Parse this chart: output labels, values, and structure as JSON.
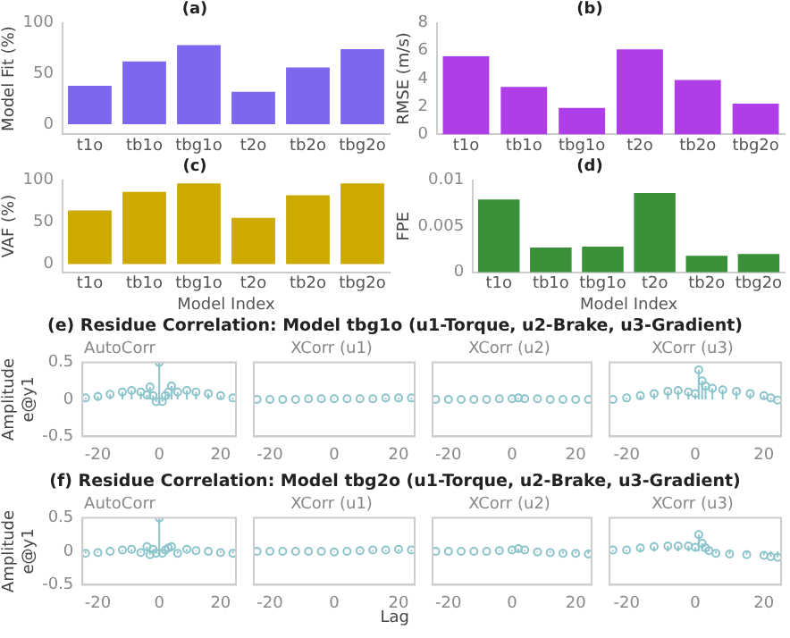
{
  "chart_data": [
    {
      "type": "bar",
      "title": "(a)",
      "ylabel": "Model Fit (%)",
      "categories": [
        "t1o",
        "tb1o",
        "tbg1o",
        "t2o",
        "tb2o",
        "tbg2o"
      ],
      "values": [
        38,
        62,
        78,
        32,
        56,
        74
      ],
      "color": "#7b68ee",
      "ylim": [
        -10,
        100
      ],
      "yticks": [
        0,
        50,
        100
      ]
    },
    {
      "type": "bar",
      "title": "(b)",
      "ylabel": "RMSE (m/s)",
      "categories": [
        "t1o",
        "tb1o",
        "tbg1o",
        "t2o",
        "tb2o",
        "tbg2o"
      ],
      "values": [
        5.6,
        3.4,
        1.9,
        6.1,
        3.9,
        2.2
      ],
      "color": "#b03ee8",
      "ylim": [
        0,
        8
      ],
      "yticks": [
        0,
        2,
        4,
        6,
        8
      ]
    },
    {
      "type": "bar",
      "title": "(c)",
      "ylabel": "VAF (%)",
      "xlabel": "Model Index",
      "categories": [
        "t1o",
        "tb1o",
        "tbg1o",
        "t2o",
        "tb2o",
        "tbg2o"
      ],
      "values": [
        64,
        86,
        96,
        55,
        82,
        96
      ],
      "color": "#ccaa00",
      "ylim": [
        -10,
        100
      ],
      "yticks": [
        0,
        50,
        100
      ]
    },
    {
      "type": "bar",
      "title": "(d)",
      "ylabel": "FPE",
      "xlabel": "Model Index",
      "categories": [
        "t1o",
        "tb1o",
        "tbg1o",
        "t2o",
        "tb2o",
        "tbg2o"
      ],
      "values": [
        0.0079,
        0.0027,
        0.0028,
        0.0086,
        0.0018,
        0.002
      ],
      "color": "#3a913a",
      "ylim": [
        0,
        0.01
      ],
      "yticks": [
        0,
        0.005,
        0.01
      ]
    },
    {
      "type": "lollipop",
      "title": "(e) Residue Correlation: Model tbg1o (u1-Torque, u2-Brake, u3-Gradient)",
      "subtitle": "AutoCorr",
      "ylabel": "Amplitude\ne@y1",
      "marker": "circle",
      "color": "#8cc4cc",
      "xlim": [
        -25,
        25
      ],
      "xticks": [
        -20,
        0,
        20
      ],
      "ylim": [
        -0.5,
        0.5
      ],
      "yticks": [
        -0.5,
        0,
        0.5
      ],
      "x": [
        -24,
        -20,
        -16,
        -12,
        -9,
        -6,
        -4,
        -3,
        -2,
        -1,
        0,
        1,
        2,
        3,
        4,
        6,
        9,
        12,
        16,
        20,
        24
      ],
      "values": [
        0.02,
        0.04,
        0.07,
        0.1,
        0.12,
        0.1,
        0.06,
        0.17,
        0.05,
        -0.03,
        0.5,
        -0.03,
        0.05,
        0.1,
        0.18,
        0.1,
        0.12,
        0.1,
        0.08,
        0.05,
        0.02
      ]
    },
    {
      "type": "lollipop",
      "subtitle": "XCorr (u1)",
      "marker": "circle",
      "color": "#8cc4cc",
      "tick_labels": "x",
      "xlim": [
        -25,
        25
      ],
      "xticks": [
        -20,
        0,
        20
      ],
      "ylim": [
        -0.5,
        0.5
      ],
      "yticks": [
        -0.5,
        0,
        0.5
      ],
      "x": [
        -24,
        -20,
        -16,
        -12,
        -8,
        -4,
        0,
        4,
        8,
        12,
        16,
        20,
        24
      ],
      "values": [
        0,
        0,
        0,
        0,
        0.01,
        0.01,
        0.01,
        0.01,
        0.01,
        0.01,
        0.02,
        0.02,
        0.02
      ]
    },
    {
      "type": "lollipop",
      "subtitle": "XCorr (u2)",
      "marker": "circle",
      "color": "#8cc4cc",
      "tick_labels": "x",
      "xlim": [
        -25,
        25
      ],
      "xticks": [
        -20,
        0,
        20
      ],
      "ylim": [
        -0.5,
        0.5
      ],
      "yticks": [
        -0.5,
        0,
        0.5
      ],
      "x": [
        -24,
        -20,
        -16,
        -12,
        -8,
        -4,
        0,
        2,
        4,
        8,
        12,
        16,
        20,
        24
      ],
      "values": [
        0,
        0,
        0,
        0,
        0,
        0.01,
        0.01,
        0.02,
        0.01,
        0.01,
        0,
        0,
        0,
        0
      ]
    },
    {
      "type": "lollipop",
      "subtitle": "XCorr (u3)",
      "marker": "circle",
      "color": "#8cc4cc",
      "tick_labels": "x",
      "xlim": [
        -25,
        25
      ],
      "xticks": [
        -20,
        0,
        20
      ],
      "ylim": [
        -0.5,
        0.5
      ],
      "yticks": [
        -0.5,
        0,
        0.5
      ],
      "x": [
        -24,
        -20,
        -16,
        -12,
        -8,
        -5,
        -2,
        0,
        1,
        2,
        3,
        5,
        8,
        12,
        16,
        20,
        22,
        24
      ],
      "values": [
        0,
        0.02,
        0.05,
        0.08,
        0.11,
        0.12,
        0.1,
        0.08,
        0.4,
        0.25,
        0.18,
        0.15,
        0.13,
        0.11,
        0.08,
        0.05,
        0.02,
        -0.01
      ]
    },
    {
      "type": "lollipop",
      "title": "(f) Residue Correlation: Model tbg2o (u1-Torque, u2-Brake, u3-Gradient)",
      "subtitle": "AutoCorr",
      "ylabel": "Amplitude\ne@y1",
      "marker": "circle",
      "color": "#8cc4cc",
      "xlim": [
        -25,
        25
      ],
      "xticks": [
        -20,
        0,
        20
      ],
      "ylim": [
        -0.5,
        0.5
      ],
      "yticks": [
        -0.5,
        0,
        0.5
      ],
      "x": [
        -24,
        -20,
        -16,
        -12,
        -9,
        -6,
        -4,
        -3,
        -2,
        -1,
        0,
        1,
        2,
        3,
        4,
        6,
        9,
        12,
        16,
        20,
        24
      ],
      "values": [
        -0.03,
        -0.02,
        0,
        0.02,
        0.03,
        -0.02,
        0.07,
        -0.05,
        0.03,
        -0.03,
        0.5,
        -0.03,
        0.02,
        0.05,
        0.07,
        -0.03,
        0.03,
        0.01,
        0,
        -0.02,
        -0.03
      ]
    },
    {
      "type": "lollipop",
      "subtitle": "XCorr (u1)",
      "xlabel": "Lag",
      "marker": "circle",
      "color": "#8cc4cc",
      "tick_labels": "x",
      "xlim": [
        -25,
        25
      ],
      "xticks": [
        -20,
        0,
        20
      ],
      "ylim": [
        -0.5,
        0.5
      ],
      "yticks": [
        -0.5,
        0,
        0.5
      ],
      "x": [
        -24,
        -20,
        -16,
        -12,
        -8,
        -4,
        0,
        4,
        8,
        12,
        16,
        20,
        24
      ],
      "values": [
        0,
        0,
        0,
        0,
        0,
        0,
        -0.01,
        0,
        0.01,
        0.02,
        0.02,
        0.03,
        0.02
      ]
    },
    {
      "type": "lollipop",
      "subtitle": "XCorr (u2)",
      "marker": "circle",
      "color": "#8cc4cc",
      "tick_labels": "x",
      "xlim": [
        -25,
        25
      ],
      "xticks": [
        -20,
        0,
        20
      ],
      "ylim": [
        -0.5,
        0.5
      ],
      "yticks": [
        -0.5,
        0,
        0.5
      ],
      "x": [
        -24,
        -20,
        -16,
        -12,
        -8,
        -4,
        0,
        2,
        4,
        8,
        12,
        16,
        20,
        24
      ],
      "values": [
        0,
        0,
        0,
        0,
        0,
        0.01,
        0.02,
        0.04,
        0.02,
        -0.01,
        -0.02,
        -0.03,
        -0.03,
        -0.04
      ]
    },
    {
      "type": "lollipop",
      "subtitle": "XCorr (u3)",
      "marker": "circle",
      "color": "#8cc4cc",
      "tick_labels": "x",
      "xlim": [
        -25,
        25
      ],
      "xticks": [
        -20,
        0,
        20
      ],
      "ylim": [
        -0.5,
        0.5
      ],
      "yticks": [
        -0.5,
        0,
        0.5
      ],
      "x": [
        -24,
        -20,
        -16,
        -12,
        -8,
        -5,
        -2,
        0,
        1,
        2,
        3,
        4,
        6,
        10,
        15,
        20,
        22,
        24
      ],
      "values": [
        0.02,
        0.02,
        0.05,
        0.07,
        0.08,
        0.08,
        0.08,
        0.06,
        0.25,
        0.12,
        0.05,
        0.01,
        -0.03,
        -0.04,
        -0.05,
        -0.06,
        -0.08,
        -0.09
      ]
    }
  ]
}
